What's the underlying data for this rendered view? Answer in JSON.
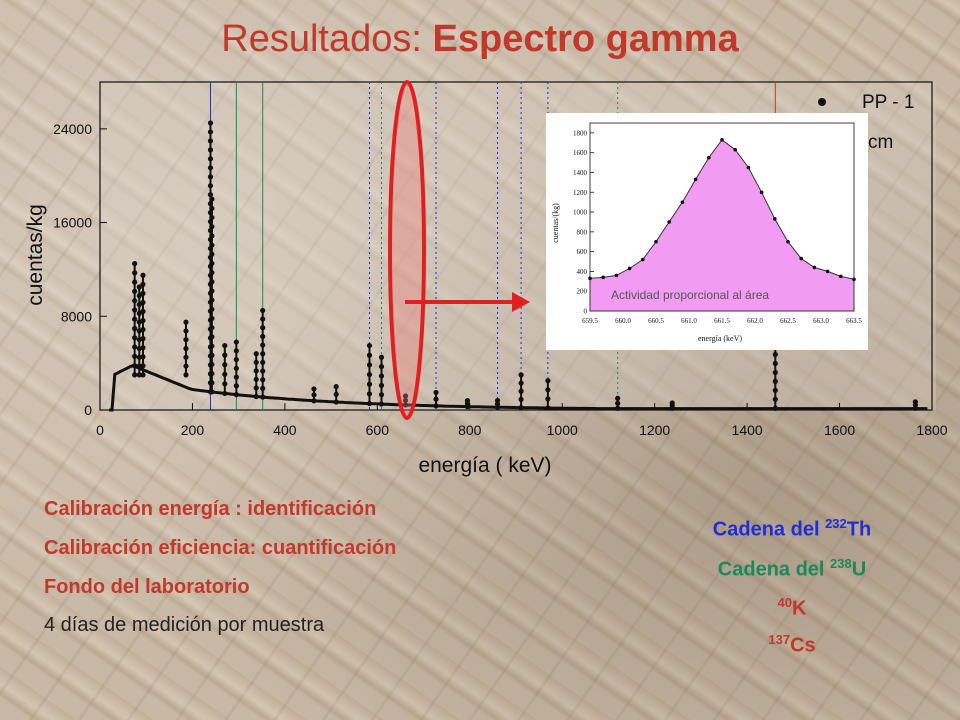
{
  "title": {
    "part1": "Resultados: ",
    "part2": "Espectro gamma"
  },
  "chart_data": [
    {
      "type": "scatter",
      "xlabel": "energía  ( keV)",
      "ylabel": "cuentas/kg",
      "xlim": [
        0,
        1800
      ],
      "ylim": [
        0,
        28000
      ],
      "xticks": [
        "0",
        "200",
        "400",
        "600",
        "800",
        "1000",
        "1200",
        "1400",
        "1600",
        "1800"
      ],
      "yticks": [
        "0",
        "8000",
        "16000",
        "24000"
      ],
      "legend": [
        {
          "name": "PP - 1"
        },
        {
          "name": "cm"
        }
      ],
      "marker_lines": [
        {
          "x": 239,
          "color": "#1f2fd6",
          "style": "solid"
        },
        {
          "x": 295,
          "color": "#1a8a5a",
          "style": "solid"
        },
        {
          "x": 352,
          "color": "#1a8a5a",
          "style": "solid"
        },
        {
          "x": 583,
          "color": "#1f2fd6",
          "style": "dotted"
        },
        {
          "x": 609,
          "color": "#1a8a5a",
          "style": "dotted"
        },
        {
          "x": 727,
          "color": "#1f2fd6",
          "style": "dotted"
        },
        {
          "x": 860,
          "color": "#1f2fd6",
          "style": "dotted"
        },
        {
          "x": 911,
          "color": "#1f2fd6",
          "style": "dotted"
        },
        {
          "x": 969,
          "color": "#1f2fd6",
          "style": "dotted"
        },
        {
          "x": 1120,
          "color": "#1a8a5a",
          "style": "dotted"
        },
        {
          "x": 1461,
          "color": "#c0392b",
          "style": "solid"
        }
      ],
      "peaks": [
        {
          "x": 75,
          "y": 12500
        },
        {
          "x": 85,
          "y": 10500
        },
        {
          "x": 93,
          "y": 11500
        },
        {
          "x": 186,
          "y": 7500
        },
        {
          "x": 239,
          "y": 24500
        },
        {
          "x": 242,
          "y": 18000
        },
        {
          "x": 270,
          "y": 5500
        },
        {
          "x": 295,
          "y": 5800
        },
        {
          "x": 338,
          "y": 4800
        },
        {
          "x": 352,
          "y": 8500
        },
        {
          "x": 463,
          "y": 1800
        },
        {
          "x": 511,
          "y": 2000
        },
        {
          "x": 583,
          "y": 5500
        },
        {
          "x": 609,
          "y": 4500
        },
        {
          "x": 661,
          "y": 1200
        },
        {
          "x": 727,
          "y": 1500
        },
        {
          "x": 795,
          "y": 800
        },
        {
          "x": 860,
          "y": 800
        },
        {
          "x": 911,
          "y": 3000
        },
        {
          "x": 969,
          "y": 2500
        },
        {
          "x": 1120,
          "y": 1000
        },
        {
          "x": 1238,
          "y": 600
        },
        {
          "x": 1461,
          "y": 5500
        },
        {
          "x": 1764,
          "y": 700
        }
      ],
      "annotation_arrow": {
        "from_energy": 661,
        "color": "#e02020"
      }
    },
    {
      "type": "area",
      "xlabel": "energía (keV)",
      "ylabel": "cuentas/(kg)",
      "xlim": [
        659.5,
        663.5
      ],
      "ylim": [
        0,
        1900
      ],
      "xticks": [
        "659.5",
        "660.0",
        "660.5",
        "661.0",
        "661.5",
        "662.0",
        "662.5",
        "663.0",
        "663.5"
      ],
      "yticks": [
        "0",
        "200",
        "400",
        "600",
        "800",
        "1000",
        "1200",
        "1400",
        "1600",
        "1800"
      ],
      "annotation": "Actividad proporcional  al área",
      "fill_color": "#f29bf2",
      "x": [
        659.5,
        659.7,
        659.9,
        660.1,
        660.3,
        660.5,
        660.7,
        660.9,
        661.1,
        661.3,
        661.5,
        661.7,
        661.9,
        662.1,
        662.3,
        662.5,
        662.7,
        662.9,
        663.1,
        663.3,
        663.5
      ],
      "y": [
        330,
        340,
        360,
        430,
        520,
        700,
        900,
        1100,
        1330,
        1550,
        1730,
        1630,
        1450,
        1200,
        930,
        700,
        530,
        440,
        400,
        350,
        320
      ]
    }
  ],
  "bullets": {
    "item1": "Calibración energía : identificación",
    "item2": "Calibración eficiencia: cuantificación",
    "item3": "Fondo del laboratorio",
    "item4": "4 días de medición por muestra"
  },
  "nuclides": {
    "th_prefix": "Cadena del ",
    "th_mass": "232",
    "th_sym": "Th",
    "th_color": "#1f2fd6",
    "u_prefix": "Cadena del ",
    "u_mass": "238",
    "u_sym": "U",
    "u_color": "#1a8a5a",
    "k_mass": "40",
    "k_sym": "K",
    "k_color": "#c0392b",
    "cs_mass": "137",
    "cs_sym": "Cs",
    "cs_color": "#c0392b"
  }
}
